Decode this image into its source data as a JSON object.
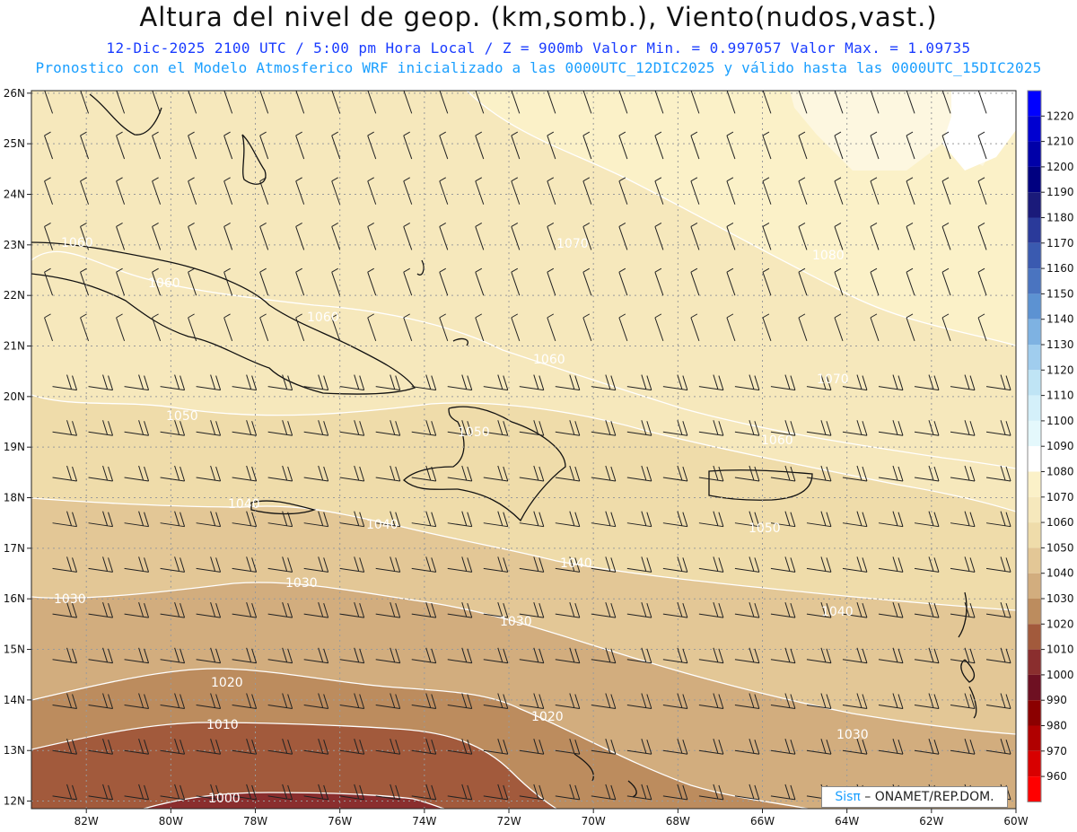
{
  "header": {
    "title": "Altura del nivel de geop. (km,somb.), Viento(nudos,vast.)",
    "line1": "12-Dic-2025  2100 UTC / 5:00 pm Hora Local / Z = 900mb   Valor Min. = 0.997057  Valor Max. = 1.09735",
    "line2": "Pronostico con el Modelo Atmosferico WRF inicializado a las 0000UTC_12DIC2025 y válido hasta las  0000UTC_15DIC2025"
  },
  "map": {
    "lon_labels": [
      "82W",
      "80W",
      "78W",
      "76W",
      "74W",
      "72W",
      "70W",
      "68W",
      "66W",
      "64W",
      "62W",
      "60W"
    ],
    "lat_labels": [
      "26N",
      "25N",
      "24N",
      "23N",
      "22N",
      "21N",
      "20N",
      "19N",
      "18N",
      "17N",
      "16N",
      "15N",
      "14N",
      "13N",
      "12N"
    ],
    "lon_range": [
      -83.3,
      -60
    ],
    "lat_range": [
      11.85,
      26.05
    ],
    "contour_labels": [
      "1000",
      "1010",
      "1020",
      "1030",
      "1040",
      "1050",
      "1060",
      "1070",
      "1080"
    ]
  },
  "colorbar": {
    "labels": [
      "1220",
      "1210",
      "1200",
      "1190",
      "1180",
      "1170",
      "1160",
      "1150",
      "1140",
      "1130",
      "1120",
      "1110",
      "1100",
      "1090",
      "1080",
      "1070",
      "1060",
      "1050",
      "1040",
      "1030",
      "1020",
      "1010",
      "1000",
      "990",
      "980",
      "970",
      "960"
    ],
    "colors": [
      "#0000ff",
      "#0000d0",
      "#0000a8",
      "#000080",
      "#1a1a7a",
      "#2a3a9a",
      "#3a5ab0",
      "#4a74c0",
      "#5c92d2",
      "#7eb2e2",
      "#a0cdee",
      "#bfe4f5",
      "#d4f0fa",
      "#e4f8fc",
      "#ffffff",
      "#fbf1c8",
      "#f6e8bc",
      "#efdcaa",
      "#e3c796",
      "#d2ad7e",
      "#bc8c5e",
      "#a25a3c",
      "#8a2e2e",
      "#6e1022",
      "#8b0000",
      "#b00000",
      "#d80000",
      "#ff0000"
    ]
  },
  "credit": {
    "brand": "Sisπ",
    "text": " – ONAMET/REP.DOM."
  }
}
